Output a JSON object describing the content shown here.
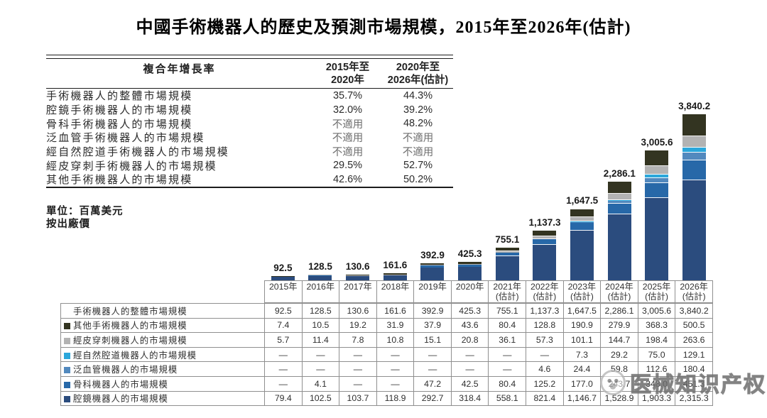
{
  "title": "中國手術機器人的歷史及預測市場規模，2015年至2026年(估計)",
  "cagr_table": {
    "header_label": "複合年增長率",
    "period1_line1": "2015年至",
    "period1_line2": "2020年",
    "period2_line1": "2020年至",
    "period2_line2": "2026年(估計)",
    "rows": [
      {
        "label": "手術機器人的整體市場規模",
        "c1": "35.7%",
        "c2": "44.3%"
      },
      {
        "label": "腔鏡手術機器人的市場規模",
        "c1": "32.0%",
        "c2": "39.2%"
      },
      {
        "label": "骨科手術機器人的市場規模",
        "c1": "不適用",
        "c2": "48.2%"
      },
      {
        "label": "泛血管手術機器人的市場規模",
        "c1": "不適用",
        "c2": "不適用"
      },
      {
        "label": "經自然腔道手術機器人的市場規模",
        "c1": "不適用",
        "c2": "不適用"
      },
      {
        "label": "經皮穿刺手術機器人的市場規模",
        "c1": "29.5%",
        "c2": "52.7%"
      },
      {
        "label": "其他手術機器人的市場規模",
        "c1": "42.6%",
        "c2": "50.2%"
      }
    ]
  },
  "notes": {
    "unit": "單位：百萬美元",
    "basis": "按出廠價"
  },
  "chart_data": {
    "type": "bar",
    "stacked": true,
    "title": "中國手術機器人的歷史及預測市場規模，2015年至2026年(估計)",
    "unit": "百萬美元",
    "categories": [
      "2015年",
      "2016年",
      "2017年",
      "2018年",
      "2019年",
      "2020年",
      "2021年",
      "2022年",
      "2023年",
      "2024年",
      "2025年",
      "2026年"
    ],
    "estimated_from_index": 6,
    "estimated_suffix": "(估計)",
    "total_row_label": "手術機器人的整體市場規模",
    "totals": [
      92.5,
      128.5,
      130.6,
      161.6,
      392.9,
      425.3,
      755.1,
      1137.3,
      1647.5,
      2286.1,
      3005.6,
      3840.2
    ],
    "series": [
      {
        "name": "腔鏡機器人的市場規模",
        "color": "#2B4C7E",
        "values": [
          79.4,
          102.5,
          103.7,
          118.9,
          292.7,
          318.4,
          558.1,
          821.4,
          1146.7,
          1528.9,
          1903.3,
          2315.3
        ]
      },
      {
        "name": "骨科機器人的市場規模",
        "color": "#2768A8",
        "values": [
          null,
          4.1,
          null,
          null,
          47.2,
          42.5,
          80.4,
          125.2,
          177.0,
          243.7,
          348.0,
          451.3
        ]
      },
      {
        "name": "泛血管機器人的市場規模",
        "color": "#5289BE",
        "values": [
          null,
          null,
          null,
          null,
          null,
          null,
          null,
          4.6,
          24.4,
          59.8,
          112.6,
          180.4
        ]
      },
      {
        "name": "經自然腔道機器人的市場規模",
        "color": "#2BA7DB",
        "values": [
          null,
          null,
          null,
          null,
          null,
          null,
          null,
          null,
          7.3,
          29.2,
          75.0,
          129.1
        ]
      },
      {
        "name": "經皮穿刺機器人的市場規模",
        "color": "#B3B3B3",
        "values": [
          5.7,
          11.4,
          7.8,
          10.8,
          15.1,
          20.8,
          36.1,
          57.3,
          101.1,
          144.7,
          198.4,
          263.6
        ]
      },
      {
        "name": "其他手術機器人的市場規模",
        "color": "#333421",
        "values": [
          7.4,
          10.5,
          19.2,
          31.9,
          37.9,
          43.6,
          80.4,
          128.8,
          190.9,
          279.9,
          368.3,
          500.5
        ]
      }
    ]
  },
  "bottom_table": {
    "row_order": [
      "totals",
      5,
      4,
      3,
      2,
      1,
      0
    ]
  },
  "watermark": {
    "text": "医械知识产权"
  }
}
